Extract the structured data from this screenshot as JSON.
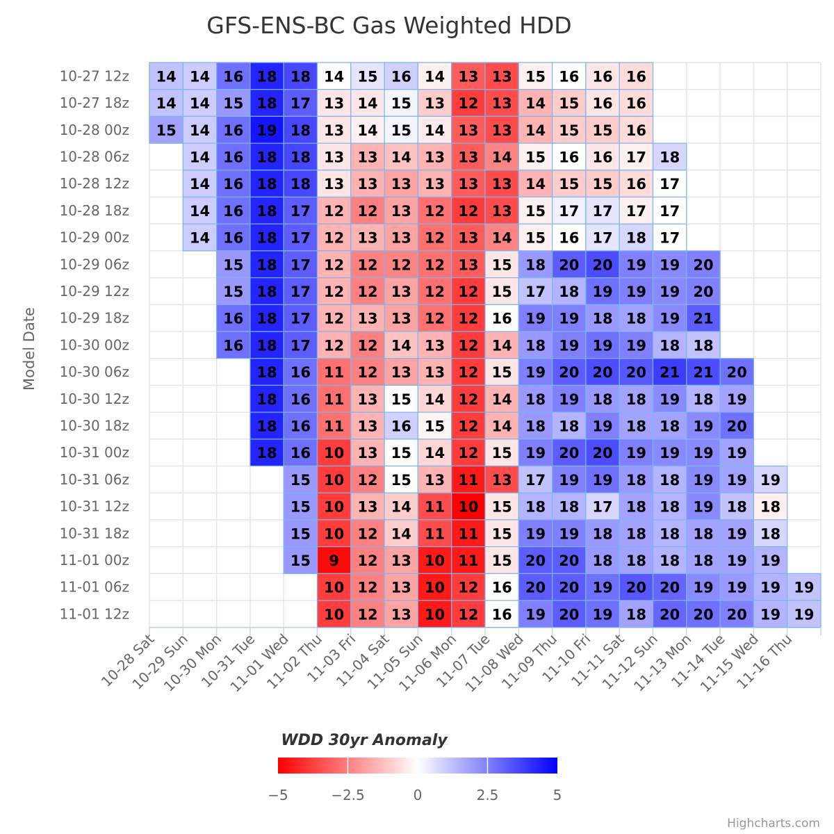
{
  "chart_data": {
    "type": "heatmap",
    "title": "GFS-ENS-BC Gas Weighted HDD",
    "ylabel": "Model Date",
    "xlabel": "",
    "x_categories": [
      "10-28 Sat",
      "10-29 Sun",
      "10-30 Mon",
      "10-31 Tue",
      "11-01 Wed",
      "11-02 Thu",
      "11-03 Fri",
      "11-04 Sat",
      "11-05 Sun",
      "11-06 Mon",
      "11-07 Tue",
      "11-08 Wed",
      "11-09 Thu",
      "11-10 Fri",
      "11-11 Sat",
      "11-12 Sun",
      "11-13 Mon",
      "11-14 Tue",
      "11-15 Wed",
      "11-16 Thu"
    ],
    "y_categories": [
      "10-27 12z",
      "10-27 18z",
      "10-28 00z",
      "10-28 06z",
      "10-28 12z",
      "10-28 18z",
      "10-29 00z",
      "10-29 06z",
      "10-29 12z",
      "10-29 18z",
      "10-30 00z",
      "10-30 06z",
      "10-30 12z",
      "10-30 18z",
      "10-31 00z",
      "10-31 06z",
      "10-31 12z",
      "10-31 18z",
      "11-01 00z",
      "11-01 06z",
      "11-01 12z"
    ],
    "rows": [
      {
        "start": 0,
        "values": [
          14,
          14,
          16,
          18,
          18,
          14,
          15,
          16,
          14,
          13,
          13,
          15,
          16,
          16,
          16
        ],
        "anomalies": [
          1.2,
          1.0,
          2.8,
          4.3,
          3.6,
          0,
          0.5,
          0.9,
          -0.3,
          -3.2,
          -3.5,
          -0.3,
          0,
          -0.5,
          -0.7
        ]
      },
      {
        "start": 0,
        "values": [
          14,
          14,
          15,
          18,
          17,
          13,
          14,
          15,
          13,
          12,
          13,
          14,
          15,
          16,
          16
        ],
        "anomalies": [
          1.2,
          1.0,
          2.0,
          4.3,
          3.2,
          -0.5,
          -0.5,
          0.2,
          -1.0,
          -3.8,
          -3.5,
          -1.5,
          -1.0,
          -0.5,
          -0.7
        ]
      },
      {
        "start": 0,
        "values": [
          15,
          14,
          16,
          19,
          18,
          13,
          14,
          15,
          14,
          13,
          13,
          14,
          15,
          15,
          16
        ],
        "anomalies": [
          1.8,
          1.0,
          2.8,
          4.6,
          3.6,
          -0.5,
          -0.3,
          0.2,
          -0.4,
          -3.2,
          -3.5,
          -1.5,
          -1.0,
          -1.0,
          -0.7
        ]
      },
      {
        "start": 1,
        "values": [
          14,
          16,
          18,
          18,
          13,
          13,
          14,
          13,
          13,
          14,
          15,
          16,
          16,
          17,
          18
        ],
        "anomalies": [
          1.0,
          2.8,
          4.3,
          3.6,
          -0.5,
          -1.5,
          -1.2,
          -1.5,
          -3.2,
          -2.4,
          -0.3,
          0,
          -0.5,
          -0.3,
          0.8
        ]
      },
      {
        "start": 1,
        "values": [
          14,
          16,
          18,
          18,
          13,
          13,
          13,
          13,
          13,
          13,
          14,
          15,
          15,
          16,
          17
        ],
        "anomalies": [
          1.0,
          2.8,
          4.3,
          3.6,
          -0.5,
          -1.5,
          -1.8,
          -1.5,
          -3.2,
          -3.5,
          -1.5,
          -1.0,
          -1.0,
          -0.7,
          0
        ]
      },
      {
        "start": 1,
        "values": [
          14,
          16,
          18,
          17,
          12,
          12,
          13,
          12,
          12,
          13,
          15,
          17,
          17,
          17,
          17
        ],
        "anomalies": [
          1.0,
          2.8,
          4.3,
          3.2,
          -1.5,
          -2.5,
          -1.8,
          -2.8,
          -3.8,
          -3.5,
          -0.3,
          0.3,
          0.5,
          -0.3,
          0
        ]
      },
      {
        "start": 1,
        "values": [
          14,
          16,
          18,
          17,
          12,
          13,
          13,
          12,
          13,
          14,
          15,
          16,
          17,
          18,
          17
        ],
        "anomalies": [
          1.0,
          2.8,
          4.3,
          3.2,
          -1.5,
          -1.5,
          -1.8,
          -2.8,
          -3.2,
          -2.4,
          -0.3,
          0,
          0.5,
          0.8,
          0
        ]
      },
      {
        "start": 2,
        "values": [
          15,
          18,
          17,
          12,
          12,
          12,
          12,
          13,
          15,
          18,
          20,
          20,
          19,
          19,
          20
        ],
        "anomalies": [
          2.0,
          4.3,
          3.2,
          -1.5,
          -2.5,
          -2.4,
          -2.8,
          -3.2,
          -0.5,
          2.0,
          3.2,
          3.5,
          2.5,
          2.3,
          2.5
        ]
      },
      {
        "start": 2,
        "values": [
          15,
          18,
          17,
          12,
          12,
          13,
          12,
          12,
          15,
          17,
          18,
          19,
          19,
          19,
          20
        ],
        "anomalies": [
          2.0,
          4.3,
          3.2,
          -1.5,
          -2.5,
          -1.8,
          -2.8,
          -3.8,
          -0.5,
          1.2,
          1.5,
          2.8,
          2.5,
          2.3,
          2.5
        ]
      },
      {
        "start": 2,
        "values": [
          16,
          18,
          17,
          12,
          13,
          13,
          12,
          12,
          16,
          19,
          19,
          18,
          18,
          19,
          21
        ],
        "anomalies": [
          2.8,
          4.3,
          3.2,
          -1.5,
          -1.5,
          -1.8,
          -2.8,
          -3.8,
          0,
          2.5,
          2.5,
          2.0,
          1.8,
          2.3,
          3.2
        ]
      },
      {
        "start": 2,
        "values": [
          16,
          18,
          17,
          12,
          12,
          14,
          13,
          12,
          14,
          18,
          19,
          19,
          19,
          18,
          18
        ],
        "anomalies": [
          2.8,
          4.3,
          3.2,
          -1.5,
          -2.5,
          -1.2,
          -1.5,
          -3.8,
          -1.5,
          2.0,
          2.5,
          2.8,
          2.5,
          1.5,
          1.2
        ]
      },
      {
        "start": 3,
        "values": [
          18,
          16,
          11,
          12,
          13,
          13,
          12,
          15,
          19,
          20,
          20,
          20,
          21,
          21,
          20
        ],
        "anomalies": [
          4.3,
          2.8,
          -2.8,
          -2.5,
          -1.8,
          -1.5,
          -3.8,
          -0.5,
          2.5,
          3.2,
          3.5,
          3.3,
          3.8,
          3.5,
          2.8
        ]
      },
      {
        "start": 3,
        "values": [
          18,
          16,
          11,
          13,
          15,
          14,
          12,
          14,
          18,
          19,
          18,
          18,
          19,
          18,
          19
        ],
        "anomalies": [
          4.3,
          2.8,
          -2.8,
          -1.5,
          0,
          -0.8,
          -3.8,
          -1.5,
          2.0,
          2.5,
          2.0,
          1.8,
          2.3,
          1.5,
          1.8
        ]
      },
      {
        "start": 3,
        "values": [
          18,
          16,
          11,
          13,
          16,
          15,
          12,
          14,
          18,
          18,
          19,
          18,
          18,
          19,
          20
        ],
        "anomalies": [
          4.3,
          2.8,
          -2.8,
          -1.5,
          0.9,
          -0.2,
          -3.8,
          -1.5,
          2.0,
          1.5,
          2.5,
          1.8,
          1.8,
          2.3,
          2.8
        ]
      },
      {
        "start": 3,
        "values": [
          18,
          16,
          10,
          13,
          15,
          14,
          12,
          15,
          19,
          20,
          20,
          19,
          19,
          19,
          19
        ],
        "anomalies": [
          4.3,
          2.8,
          -3.8,
          -1.5,
          0,
          -0.8,
          -3.8,
          -0.5,
          2.5,
          3.2,
          3.5,
          2.5,
          2.3,
          2.3,
          1.8
        ]
      },
      {
        "start": 4,
        "values": [
          15,
          10,
          12,
          15,
          13,
          11,
          13,
          17,
          19,
          19,
          18,
          18,
          19,
          19,
          19
        ],
        "anomalies": [
          2.0,
          -3.8,
          -2.5,
          0,
          -1.5,
          -4.5,
          -3.5,
          1.2,
          2.5,
          2.8,
          2.0,
          1.5,
          2.3,
          1.8,
          0.8
        ]
      },
      {
        "start": 4,
        "values": [
          15,
          10,
          13,
          14,
          11,
          10,
          15,
          18,
          18,
          17,
          18,
          18,
          19,
          18,
          18
        ],
        "anomalies": [
          2.0,
          -3.8,
          -1.5,
          -1.0,
          -3.5,
          -5.0,
          -0.5,
          1.5,
          1.5,
          0.8,
          1.8,
          1.5,
          2.3,
          1.2,
          -0.3
        ]
      },
      {
        "start": 4,
        "values": [
          15,
          10,
          12,
          14,
          11,
          11,
          15,
          19,
          19,
          18,
          18,
          18,
          18,
          19,
          18
        ],
        "anomalies": [
          2.0,
          -3.8,
          -2.5,
          -1.0,
          -3.5,
          -4.5,
          -0.5,
          2.5,
          2.5,
          2.0,
          1.8,
          1.5,
          1.8,
          1.8,
          0.8
        ]
      },
      {
        "start": 4,
        "values": [
          15,
          9,
          12,
          13,
          10,
          11,
          15,
          20,
          20,
          18,
          18,
          18,
          18,
          19,
          19
        ],
        "anomalies": [
          2.0,
          -4.8,
          -2.5,
          -1.8,
          -4.5,
          -4.5,
          -0.5,
          3.2,
          3.2,
          2.0,
          1.8,
          1.5,
          1.8,
          1.8,
          1.5
        ]
      },
      {
        "start": 5,
        "values": [
          10,
          12,
          13,
          10,
          12,
          16,
          20,
          20,
          19,
          20,
          20,
          19,
          19,
          19,
          19
        ],
        "anomalies": [
          -3.8,
          -2.5,
          -1.8,
          -4.5,
          -3.8,
          0,
          3.2,
          3.2,
          2.8,
          3.3,
          3.0,
          2.3,
          2.0,
          1.5,
          1.2
        ]
      },
      {
        "start": 5,
        "values": [
          10,
          12,
          13,
          10,
          12,
          16,
          19,
          20,
          19,
          18,
          20,
          20,
          20,
          19,
          19
        ],
        "anomalies": [
          -3.8,
          -2.5,
          -1.8,
          -4.5,
          -3.8,
          0,
          2.5,
          3.2,
          2.8,
          1.8,
          3.0,
          2.8,
          2.5,
          1.5,
          1.2
        ]
      }
    ],
    "colorAxis": {
      "title": "WDD 30yr Anomaly",
      "min": -5,
      "max": 5,
      "tick_labels": [
        "−5",
        "−2.5",
        "0",
        "2.5",
        "5"
      ],
      "tick_values": [
        -5,
        -2.5,
        0,
        2.5,
        5
      ],
      "stops": [
        "#ff0000",
        "#ffffff",
        "#0000ff"
      ]
    },
    "grid": true,
    "legend_position": "bottom-center"
  },
  "credits": "Highcharts.com"
}
